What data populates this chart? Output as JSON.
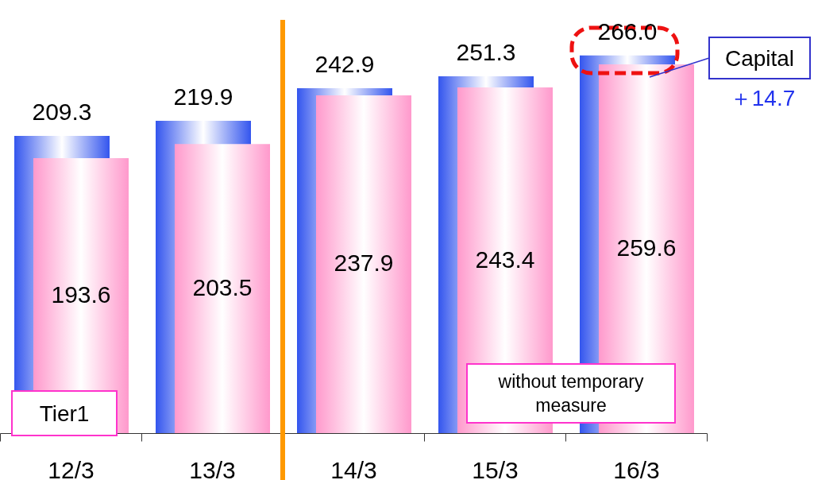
{
  "chart_data": {
    "type": "bar",
    "categories": [
      "12/3",
      "13/3",
      "14/3",
      "15/3",
      "16/3"
    ],
    "series": [
      {
        "name": "Capital",
        "color": "#3355ee",
        "values": [
          209.3,
          219.9,
          242.9,
          251.3,
          266.0
        ],
        "value_labels": [
          "209.3",
          "219.9",
          "242.9",
          "251.3",
          "266.0"
        ]
      },
      {
        "name": "Tier1",
        "color": "#ff99cc",
        "values": [
          193.6,
          203.5,
          237.9,
          243.4,
          259.6
        ],
        "value_labels": [
          "193.6",
          "203.5",
          "237.9",
          "243.4",
          "259.6"
        ]
      }
    ],
    "legend": "top right",
    "ref_lines": [
      {
        "axis": "x",
        "value": "14/3",
        "color": "#ff9900"
      }
    ],
    "annotations": [
      "＋14.7",
      "without temporary measure"
    ]
  }
}
